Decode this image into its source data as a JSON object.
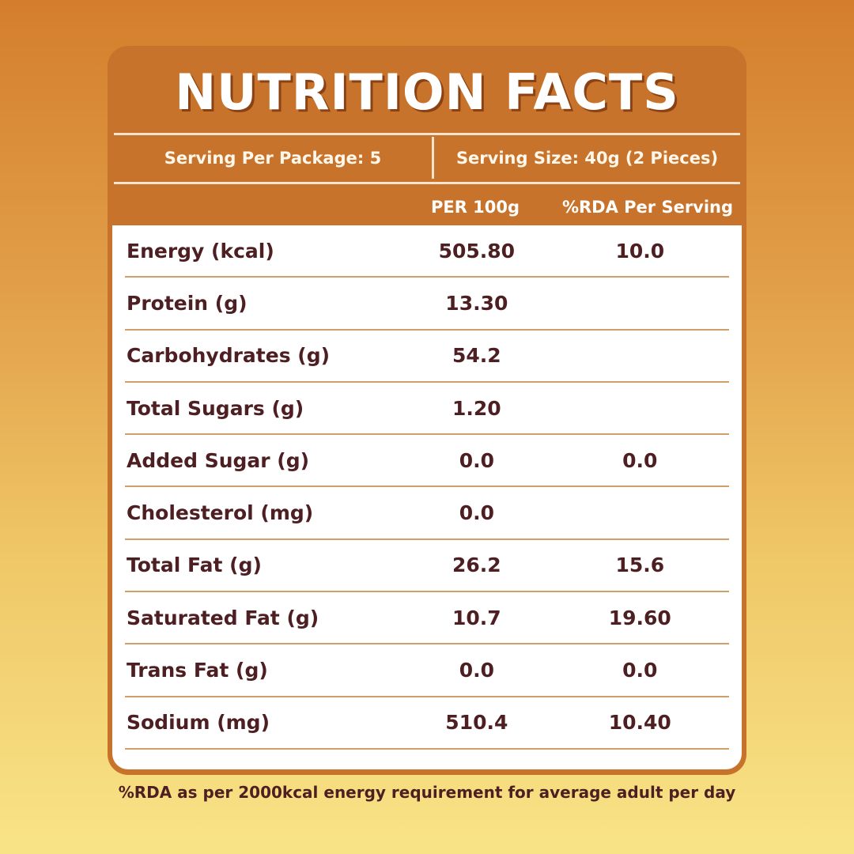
{
  "title": "NUTRITION FACTS",
  "serving": {
    "per_package": "Serving Per Package: 5",
    "size": "Serving Size: 40g (2 Pieces)"
  },
  "columns": {
    "per100": "PER 100g",
    "rda": "%RDA Per Serving"
  },
  "rows": [
    {
      "name": "Energy (kcal)",
      "per100": "505.80",
      "rda": "10.0"
    },
    {
      "name": "Protein (g)",
      "per100": "13.30",
      "rda": ""
    },
    {
      "name": "Carbohydrates (g)",
      "per100": "54.2",
      "rda": ""
    },
    {
      "name": "Total Sugars (g)",
      "per100": "1.20",
      "rda": ""
    },
    {
      "name": "Added Sugar (g)",
      "per100": "0.0",
      "rda": "0.0"
    },
    {
      "name": "Cholesterol (mg)",
      "per100": "0.0",
      "rda": ""
    },
    {
      "name": "Total Fat (g)",
      "per100": "26.2",
      "rda": "15.6"
    },
    {
      "name": "Saturated Fat (g)",
      "per100": "10.7",
      "rda": "19.60"
    },
    {
      "name": "Trans Fat (g)",
      "per100": "0.0",
      "rda": "0.0"
    },
    {
      "name": "Sodium (mg)",
      "per100": "510.4",
      "rda": "10.40"
    }
  ],
  "footnote": "%RDA as per 2000kcal energy requirement for average adult per day",
  "colors": {
    "card": "#c8732b",
    "text_dark": "#4e1f22",
    "divider": "#cf9f6c"
  }
}
